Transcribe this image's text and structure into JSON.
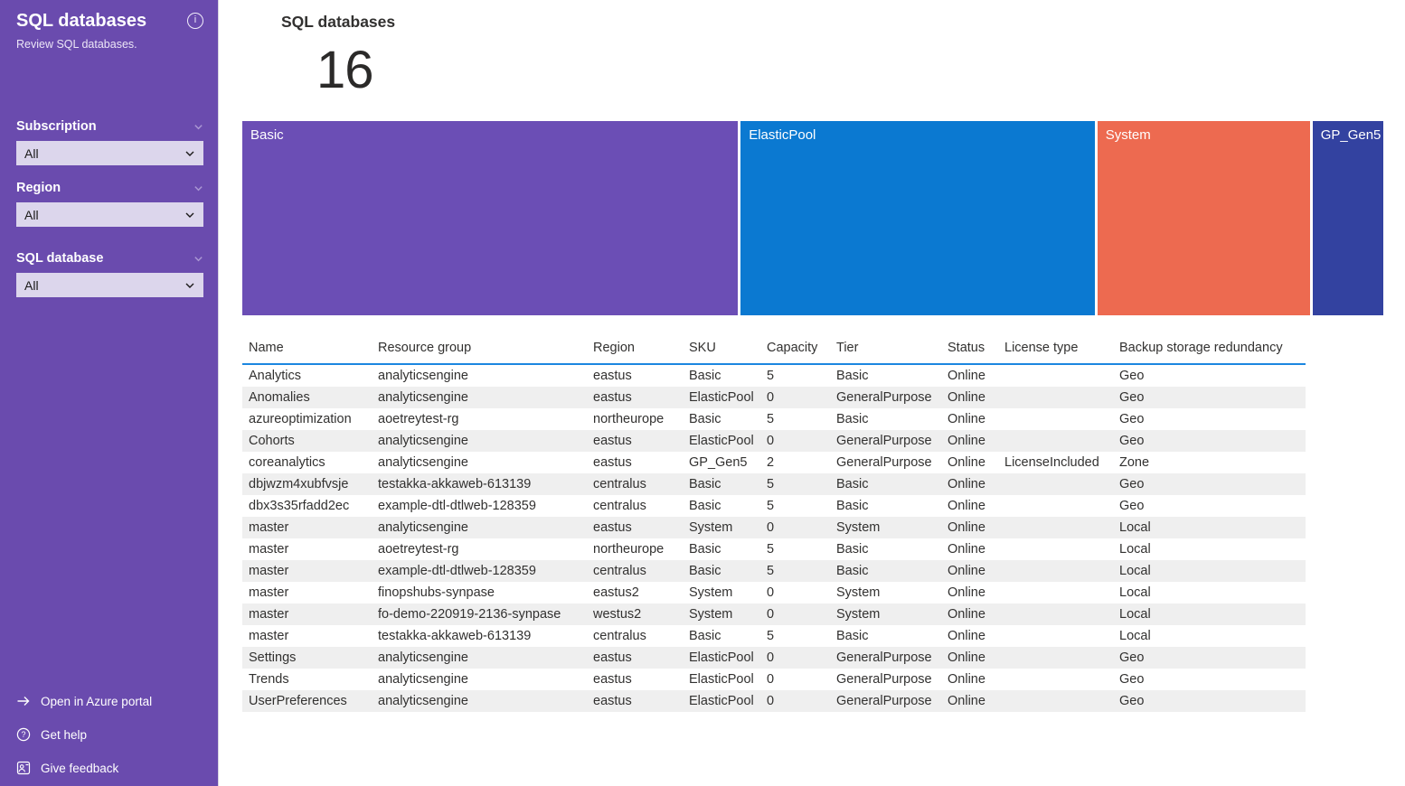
{
  "sidebar": {
    "title": "SQL databases",
    "subtitle": "Review SQL databases.",
    "filters": [
      {
        "label": "Subscription",
        "value": "All"
      },
      {
        "label": "Region",
        "value": "All"
      },
      {
        "label": "SQL database",
        "value": "All"
      }
    ],
    "links": [
      {
        "label": "Open in Azure portal",
        "icon": "arrow-right-icon"
      },
      {
        "label": "Get help",
        "icon": "help-circle-icon"
      },
      {
        "label": "Give feedback",
        "icon": "feedback-icon"
      }
    ]
  },
  "main": {
    "kpi": {
      "title": "SQL databases",
      "value": "16"
    },
    "table": {
      "columns": [
        "Name",
        "Resource group",
        "Region",
        "SKU",
        "Capacity",
        "Tier",
        "Status",
        "License type",
        "Backup storage redundancy"
      ],
      "rows": [
        [
          "Analytics",
          "analyticsengine",
          "eastus",
          "Basic",
          "5",
          "Basic",
          "Online",
          "",
          "Geo"
        ],
        [
          "Anomalies",
          "analyticsengine",
          "eastus",
          "ElasticPool",
          "0",
          "GeneralPurpose",
          "Online",
          "",
          "Geo"
        ],
        [
          "azureoptimization",
          "aoetreytest-rg",
          "northeurope",
          "Basic",
          "5",
          "Basic",
          "Online",
          "",
          "Geo"
        ],
        [
          "Cohorts",
          "analyticsengine",
          "eastus",
          "ElasticPool",
          "0",
          "GeneralPurpose",
          "Online",
          "",
          "Geo"
        ],
        [
          "coreanalytics",
          "analyticsengine",
          "eastus",
          "GP_Gen5",
          "2",
          "GeneralPurpose",
          "Online",
          "LicenseIncluded",
          "Zone"
        ],
        [
          "dbjwzm4xubfvsje",
          "testakka-akkaweb-613139",
          "centralus",
          "Basic",
          "5",
          "Basic",
          "Online",
          "",
          "Geo"
        ],
        [
          "dbx3s35rfadd2ec",
          "example-dtl-dtlweb-128359",
          "centralus",
          "Basic",
          "5",
          "Basic",
          "Online",
          "",
          "Geo"
        ],
        [
          "master",
          "analyticsengine",
          "eastus",
          "System",
          "0",
          "System",
          "Online",
          "",
          "Local"
        ],
        [
          "master",
          "aoetreytest-rg",
          "northeurope",
          "Basic",
          "5",
          "Basic",
          "Online",
          "",
          "Local"
        ],
        [
          "master",
          "example-dtl-dtlweb-128359",
          "centralus",
          "Basic",
          "5",
          "Basic",
          "Online",
          "",
          "Local"
        ],
        [
          "master",
          "finopshubs-synpase",
          "eastus2",
          "System",
          "0",
          "System",
          "Online",
          "",
          "Local"
        ],
        [
          "master",
          "fo-demo-220919-2136-synpase",
          "westus2",
          "System",
          "0",
          "System",
          "Online",
          "",
          "Local"
        ],
        [
          "master",
          "testakka-akkaweb-613139",
          "centralus",
          "Basic",
          "5",
          "Basic",
          "Online",
          "",
          "Local"
        ],
        [
          "Settings",
          "analyticsengine",
          "eastus",
          "ElasticPool",
          "0",
          "GeneralPurpose",
          "Online",
          "",
          "Geo"
        ],
        [
          "Trends",
          "analyticsengine",
          "eastus",
          "ElasticPool",
          "0",
          "GeneralPurpose",
          "Online",
          "",
          "Geo"
        ],
        [
          "UserPreferences",
          "analyticsengine",
          "eastus",
          "ElasticPool",
          "0",
          "GeneralPurpose",
          "Online",
          "",
          "Geo"
        ]
      ]
    }
  },
  "chart_data": {
    "type": "treemap",
    "categories": [
      "Basic",
      "ElasticPool",
      "System",
      "GP_Gen5"
    ],
    "values": [
      7,
      5,
      3,
      1
    ],
    "title": "",
    "legend": "labels drawn inside segments, single row layout"
  },
  "icons": {
    "info_glyph": "i"
  },
  "colors": {
    "sidebar_bg": "#6a4bae",
    "dropdown_bg": "#dcd6ec",
    "header_underline": "#1b87e0",
    "row_stripe": "#efefef",
    "text_dark": "#323130",
    "treemap": {
      "Basic": "#6b4eb5",
      "ElasticPool": "#0b79d1",
      "System": "#ed6a50",
      "GP_Gen5": "#3342a0"
    }
  }
}
